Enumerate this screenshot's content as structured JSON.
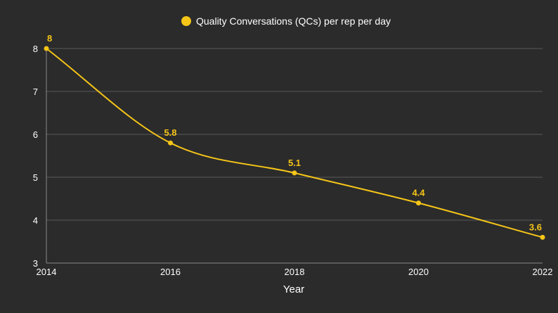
{
  "chart_data": {
    "type": "line",
    "x": [
      2014,
      2016,
      2018,
      2020,
      2022
    ],
    "series": [
      {
        "name": "Quality Conversations (QCs) per rep per day",
        "values": [
          8,
          5.8,
          5.1,
          4.4,
          3.6
        ]
      }
    ],
    "data_labels": [
      "8",
      "5.8",
      "5.1",
      "4.4",
      "3.6"
    ],
    "x_tick_labels": [
      "2014",
      "2016",
      "2018",
      "2020",
      "2022"
    ],
    "y_tick_labels": [
      "3",
      "4",
      "5",
      "6",
      "7",
      "8"
    ],
    "y_ticks": [
      3,
      4,
      5,
      6,
      7,
      8
    ],
    "xlabel": "Year",
    "ylabel": "",
    "xlim": [
      2014,
      2022
    ],
    "ylim": [
      3,
      8
    ],
    "grid": true,
    "legend_position": "top-center",
    "colors": {
      "background": "#2b2b2b",
      "series": "#f5c518",
      "grid": "#5a5a5a",
      "text": "#ffffff"
    }
  }
}
